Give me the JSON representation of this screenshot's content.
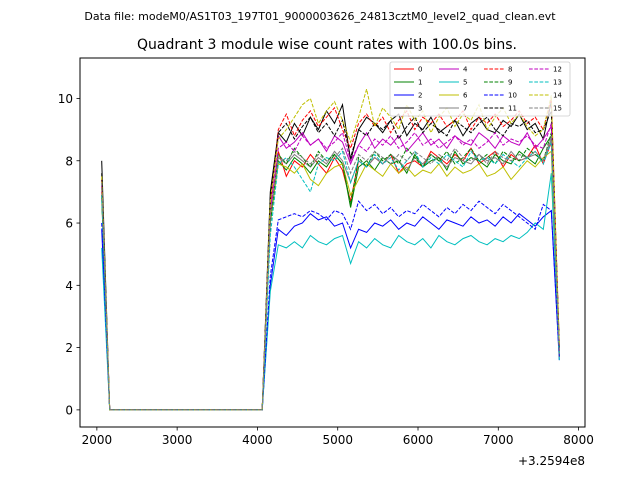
{
  "suptitle": "Data file: modeM0/AS1T03_197T01_9000003626_24813cztM0_level2_quad_clean.evt",
  "chart_data": {
    "type": "line",
    "title": "Quadrant 3 module wise count rates with 100.0s bins.",
    "xlabel": "",
    "ylabel": "",
    "x_offset_label": "+3.2594e8",
    "xlim": [
      1790,
      8080
    ],
    "ylim": [
      -0.55,
      11.3
    ],
    "x_ticks": [
      2000,
      3000,
      4000,
      5000,
      6000,
      7000,
      8000
    ],
    "x_tick_labels": [
      "2000",
      "3000",
      "4000",
      "5000",
      "6000",
      "7000",
      "8000"
    ],
    "y_ticks": [
      0,
      2,
      4,
      6,
      8,
      10
    ],
    "y_tick_labels": [
      "0",
      "2",
      "4",
      "6",
      "8",
      "10"
    ],
    "grid": false,
    "legend_position": "top-right",
    "x": [
      2060,
      2160,
      2260,
      2360,
      2460,
      2560,
      2660,
      2760,
      2860,
      2960,
      3060,
      3160,
      3260,
      3360,
      3460,
      3560,
      3660,
      3760,
      3860,
      3960,
      4060,
      4160,
      4260,
      4360,
      4460,
      4560,
      4660,
      4760,
      4860,
      4960,
      5060,
      5160,
      5260,
      5360,
      5460,
      5560,
      5660,
      5760,
      5860,
      5960,
      6060,
      6160,
      6260,
      6360,
      6460,
      6560,
      6660,
      6760,
      6860,
      6960,
      7060,
      7160,
      7260,
      7360,
      7460,
      7560,
      7660,
      7760
    ],
    "series": [
      {
        "name": "0",
        "color": "#ff0000",
        "dash": "solid",
        "values": [
          7.0,
          0.0,
          0.0,
          0.0,
          0.0,
          0.0,
          0.0,
          0.0,
          0.0,
          0.0,
          0.0,
          0.0,
          0.0,
          0.0,
          0.0,
          0.0,
          0.0,
          0.0,
          0.0,
          0.0,
          0.0,
          6.2,
          8.3,
          7.5,
          8.0,
          7.8,
          8.2,
          7.9,
          7.6,
          8.1,
          7.7,
          6.7,
          8.0,
          7.8,
          8.1,
          7.9,
          8.2,
          7.6,
          7.9,
          8.0,
          7.8,
          8.3,
          8.1,
          7.9,
          8.2,
          8.0,
          8.4,
          7.9,
          8.1,
          8.3,
          7.8,
          8.2,
          8.0,
          8.1,
          8.5,
          7.9,
          8.6,
          1.8
        ]
      },
      {
        "name": "1",
        "color": "#008000",
        "dash": "solid",
        "values": [
          6.8,
          0.0,
          0.0,
          0.0,
          0.0,
          0.0,
          0.0,
          0.0,
          0.0,
          0.0,
          0.0,
          0.0,
          0.0,
          0.0,
          0.0,
          0.0,
          0.0,
          0.0,
          0.0,
          0.0,
          0.0,
          6.0,
          8.0,
          7.7,
          8.1,
          7.9,
          7.6,
          8.0,
          7.8,
          8.2,
          7.9,
          6.5,
          7.8,
          8.0,
          7.7,
          8.1,
          7.9,
          8.0,
          7.6,
          8.2,
          7.8,
          8.0,
          8.1,
          7.7,
          8.3,
          7.9,
          8.1,
          8.0,
          7.8,
          8.2,
          8.0,
          7.9,
          8.3,
          8.1,
          7.9,
          8.4,
          8.8,
          1.7
        ]
      },
      {
        "name": "2",
        "color": "#0000ff",
        "dash": "solid",
        "values": [
          5.8,
          0.0,
          0.0,
          0.0,
          0.0,
          0.0,
          0.0,
          0.0,
          0.0,
          0.0,
          0.0,
          0.0,
          0.0,
          0.0,
          0.0,
          0.0,
          0.0,
          0.0,
          0.0,
          0.0,
          0.0,
          4.0,
          5.8,
          5.6,
          5.9,
          6.0,
          6.3,
          6.1,
          6.2,
          5.9,
          6.0,
          5.2,
          5.8,
          5.7,
          6.0,
          5.9,
          6.1,
          5.8,
          6.0,
          5.9,
          6.2,
          6.0,
          5.8,
          6.1,
          6.0,
          5.9,
          6.2,
          6.0,
          6.1,
          5.9,
          6.2,
          6.0,
          6.3,
          6.1,
          5.9,
          6.2,
          6.4,
          1.6
        ]
      },
      {
        "name": "3",
        "color": "#000000",
        "dash": "solid",
        "values": [
          8.0,
          0.0,
          0.0,
          0.0,
          0.0,
          0.0,
          0.0,
          0.0,
          0.0,
          0.0,
          0.0,
          0.0,
          0.0,
          0.0,
          0.0,
          0.0,
          0.0,
          0.0,
          0.0,
          0.0,
          0.0,
          7.0,
          8.9,
          8.6,
          9.2,
          8.8,
          9.4,
          9.0,
          9.6,
          9.2,
          9.8,
          8.0,
          9.0,
          9.4,
          9.2,
          8.9,
          9.3,
          9.5,
          8.8,
          9.2,
          9.0,
          9.4,
          8.9,
          9.1,
          9.3,
          8.8,
          9.2,
          9.4,
          9.0,
          8.9,
          9.3,
          9.1,
          9.5,
          9.0,
          9.2,
          8.7,
          9.9,
          2.0
        ]
      },
      {
        "name": "4",
        "color": "#bf00bf",
        "dash": "solid",
        "values": [
          7.2,
          0.0,
          0.0,
          0.0,
          0.0,
          0.0,
          0.0,
          0.0,
          0.0,
          0.0,
          0.0,
          0.0,
          0.0,
          0.0,
          0.0,
          0.0,
          0.0,
          0.0,
          0.0,
          0.0,
          0.0,
          6.5,
          8.8,
          8.4,
          8.6,
          8.9,
          8.5,
          8.7,
          8.3,
          8.8,
          8.6,
          7.9,
          8.5,
          8.9,
          8.4,
          8.7,
          8.5,
          8.8,
          8.3,
          8.6,
          8.9,
          8.5,
          8.7,
          8.4,
          8.8,
          8.6,
          8.5,
          8.9,
          8.7,
          8.4,
          8.8,
          8.6,
          8.5,
          8.9,
          8.4,
          8.7,
          9.1,
          1.9
        ]
      },
      {
        "name": "5",
        "color": "#00bfbf",
        "dash": "solid",
        "values": [
          5.2,
          0.0,
          0.0,
          0.0,
          0.0,
          0.0,
          0.0,
          0.0,
          0.0,
          0.0,
          0.0,
          0.0,
          0.0,
          0.0,
          0.0,
          0.0,
          0.0,
          0.0,
          0.0,
          0.0,
          0.0,
          3.8,
          5.3,
          5.2,
          5.4,
          5.2,
          5.6,
          5.4,
          5.3,
          5.5,
          5.6,
          4.7,
          5.4,
          5.2,
          5.5,
          5.3,
          5.2,
          5.6,
          5.4,
          5.3,
          5.5,
          5.2,
          5.6,
          5.4,
          5.3,
          5.5,
          5.6,
          5.4,
          5.3,
          5.5,
          5.4,
          5.6,
          5.5,
          5.7,
          6.0,
          5.8,
          7.6,
          1.6
        ]
      },
      {
        "name": "6",
        "color": "#bfbf00",
        "dash": "solid",
        "values": [
          7.1,
          0.0,
          0.0,
          0.0,
          0.0,
          0.0,
          0.0,
          0.0,
          0.0,
          0.0,
          0.0,
          0.0,
          0.0,
          0.0,
          0.0,
          0.0,
          0.0,
          0.0,
          0.0,
          0.0,
          0.0,
          6.1,
          7.9,
          7.8,
          7.6,
          7.9,
          7.4,
          7.2,
          7.6,
          7.8,
          7.9,
          6.9,
          7.4,
          7.9,
          7.7,
          7.5,
          7.9,
          7.6,
          7.8,
          7.5,
          7.7,
          7.6,
          7.9,
          7.5,
          7.8,
          7.6,
          7.7,
          7.9,
          7.5,
          7.6,
          7.8,
          7.4,
          7.7,
          8.0,
          7.8,
          8.1,
          8.3,
          1.7
        ]
      },
      {
        "name": "7",
        "color": "#808080",
        "dash": "solid",
        "values": [
          7.3,
          0.0,
          0.0,
          0.0,
          0.0,
          0.0,
          0.0,
          0.0,
          0.0,
          0.0,
          0.0,
          0.0,
          0.0,
          0.0,
          0.0,
          0.0,
          0.0,
          0.0,
          0.0,
          0.0,
          0.0,
          6.3,
          8.1,
          7.9,
          8.2,
          8.0,
          7.8,
          8.1,
          7.9,
          8.3,
          8.0,
          7.3,
          8.0,
          7.8,
          8.1,
          7.9,
          8.2,
          8.0,
          7.7,
          8.1,
          7.9,
          8.2,
          8.0,
          7.8,
          8.1,
          8.0,
          7.9,
          8.2,
          8.0,
          8.1,
          7.9,
          8.3,
          8.0,
          8.1,
          8.2,
          8.0,
          8.7,
          1.8
        ]
      },
      {
        "name": "8",
        "color": "#ff0000",
        "dash": "dashed",
        "values": [
          7.4,
          0.0,
          0.0,
          0.0,
          0.0,
          0.0,
          0.0,
          0.0,
          0.0,
          0.0,
          0.0,
          0.0,
          0.0,
          0.0,
          0.0,
          0.0,
          0.0,
          0.0,
          0.0,
          0.0,
          0.0,
          6.6,
          9.0,
          9.5,
          8.8,
          9.3,
          9.6,
          9.1,
          9.4,
          9.7,
          9.0,
          8.4,
          9.2,
          9.5,
          9.1,
          9.4,
          8.9,
          9.3,
          9.6,
          9.0,
          9.4,
          9.2,
          9.5,
          9.1,
          9.3,
          9.6,
          9.0,
          9.4,
          9.2,
          9.5,
          9.1,
          9.3,
          9.6,
          9.2,
          9.4,
          9.0,
          10.0,
          2.1
        ]
      },
      {
        "name": "9",
        "color": "#008000",
        "dash": "dashed",
        "values": [
          6.9,
          0.0,
          0.0,
          0.0,
          0.0,
          0.0,
          0.0,
          0.0,
          0.0,
          0.0,
          0.0,
          0.0,
          0.0,
          0.0,
          0.0,
          0.0,
          0.0,
          0.0,
          0.0,
          0.0,
          0.0,
          6.0,
          8.2,
          7.9,
          8.4,
          8.1,
          7.8,
          8.3,
          8.0,
          8.2,
          7.9,
          6.6,
          8.1,
          7.8,
          8.3,
          8.0,
          8.2,
          7.9,
          8.4,
          8.1,
          7.8,
          8.2,
          8.0,
          8.3,
          7.9,
          8.1,
          8.4,
          8.0,
          8.2,
          7.9,
          8.3,
          8.1,
          8.0,
          8.4,
          8.2,
          8.0,
          8.9,
          1.8
        ]
      },
      {
        "name": "10",
        "color": "#0000ff",
        "dash": "dashed",
        "values": [
          6.0,
          0.0,
          0.0,
          0.0,
          0.0,
          0.0,
          0.0,
          0.0,
          0.0,
          0.0,
          0.0,
          0.0,
          0.0,
          0.0,
          0.0,
          0.0,
          0.0,
          0.0,
          0.0,
          0.0,
          0.0,
          4.3,
          6.1,
          6.2,
          6.3,
          6.2,
          6.4,
          6.3,
          6.1,
          6.4,
          6.3,
          5.8,
          6.7,
          6.4,
          6.6,
          6.3,
          6.5,
          6.2,
          6.4,
          6.3,
          6.6,
          6.4,
          6.2,
          6.5,
          6.3,
          6.6,
          6.4,
          6.7,
          6.5,
          6.3,
          6.6,
          6.4,
          6.2,
          6.0,
          5.8,
          6.6,
          6.4,
          1.7
        ]
      },
      {
        "name": "11",
        "color": "#000000",
        "dash": "dashed",
        "values": [
          7.6,
          0.0,
          0.0,
          0.0,
          0.0,
          0.0,
          0.0,
          0.0,
          0.0,
          0.0,
          0.0,
          0.0,
          0.0,
          0.0,
          0.0,
          0.0,
          0.0,
          0.0,
          0.0,
          0.0,
          0.0,
          6.8,
          8.9,
          9.2,
          8.7,
          9.1,
          9.4,
          8.9,
          9.2,
          8.8,
          9.3,
          8.1,
          9.0,
          8.8,
          9.2,
          9.0,
          9.3,
          8.7,
          9.1,
          9.4,
          8.9,
          9.2,
          9.0,
          8.8,
          9.3,
          9.1,
          8.9,
          9.2,
          9.4,
          9.0,
          8.8,
          9.2,
          9.1,
          9.3,
          8.9,
          9.0,
          9.6,
          2.0
        ]
      },
      {
        "name": "12",
        "color": "#bf00bf",
        "dash": "dashed",
        "values": [
          7.2,
          0.0,
          0.0,
          0.0,
          0.0,
          0.0,
          0.0,
          0.0,
          0.0,
          0.0,
          0.0,
          0.0,
          0.0,
          0.0,
          0.0,
          0.0,
          0.0,
          0.0,
          0.0,
          0.0,
          0.0,
          6.3,
          8.4,
          8.6,
          8.3,
          8.8,
          8.5,
          8.7,
          8.4,
          8.6,
          8.9,
          8.0,
          8.5,
          8.3,
          8.7,
          8.5,
          8.8,
          8.4,
          8.6,
          8.9,
          8.5,
          8.7,
          8.4,
          8.6,
          8.8,
          8.5,
          8.7,
          8.4,
          8.6,
          8.9,
          8.5,
          8.7,
          8.6,
          8.8,
          8.5,
          8.4,
          9.2,
          1.9
        ]
      },
      {
        "name": "13",
        "color": "#00bfbf",
        "dash": "dashed",
        "values": [
          6.9,
          0.0,
          0.0,
          0.0,
          0.0,
          0.0,
          0.0,
          0.0,
          0.0,
          0.0,
          0.0,
          0.0,
          0.0,
          0.0,
          0.0,
          0.0,
          0.0,
          0.0,
          0.0,
          0.0,
          0.0,
          5.6,
          7.9,
          8.1,
          7.8,
          7.4,
          7.0,
          7.9,
          8.1,
          8.0,
          8.3,
          7.3,
          8.0,
          7.8,
          8.2,
          7.9,
          8.1,
          7.7,
          8.0,
          8.3,
          7.8,
          8.1,
          7.9,
          8.2,
          8.0,
          7.8,
          8.3,
          8.0,
          8.1,
          7.9,
          8.2,
          8.0,
          7.8,
          8.1,
          8.3,
          7.9,
          8.6,
          1.8
        ]
      },
      {
        "name": "14",
        "color": "#bfbf00",
        "dash": "dashed",
        "values": [
          7.5,
          0.0,
          0.0,
          0.0,
          0.0,
          0.0,
          0.0,
          0.0,
          0.0,
          0.0,
          0.0,
          0.0,
          0.0,
          0.0,
          0.0,
          0.0,
          0.0,
          0.0,
          0.0,
          0.0,
          0.0,
          6.7,
          8.7,
          9.0,
          9.4,
          9.8,
          10.0,
          9.2,
          9.6,
          9.9,
          9.3,
          8.6,
          9.4,
          10.3,
          9.1,
          9.7,
          9.4,
          9.0,
          9.8,
          9.3,
          9.6,
          8.9,
          9.4,
          9.7,
          9.1,
          9.5,
          9.3,
          9.8,
          9.0,
          9.4,
          9.7,
          9.2,
          9.5,
          9.1,
          8.8,
          9.0,
          10.1,
          2.1
        ]
      },
      {
        "name": "15",
        "color": "#808080",
        "dash": "dashed",
        "values": [
          7.3,
          0.0,
          0.0,
          0.0,
          0.0,
          0.0,
          0.0,
          0.0,
          0.0,
          0.0,
          0.0,
          0.0,
          0.0,
          0.0,
          0.0,
          0.0,
          0.0,
          0.0,
          0.0,
          0.0,
          0.0,
          6.2,
          8.1,
          8.0,
          8.3,
          8.1,
          7.9,
          8.2,
          8.0,
          8.1,
          8.4,
          7.6,
          8.2,
          8.0,
          8.3,
          8.1,
          7.9,
          8.2,
          8.0,
          8.3,
          8.1,
          7.9,
          8.2,
          8.0,
          8.4,
          8.1,
          8.0,
          8.2,
          7.9,
          8.3,
          8.1,
          8.0,
          8.2,
          8.1,
          8.3,
          8.0,
          8.8,
          1.8
        ]
      }
    ]
  }
}
